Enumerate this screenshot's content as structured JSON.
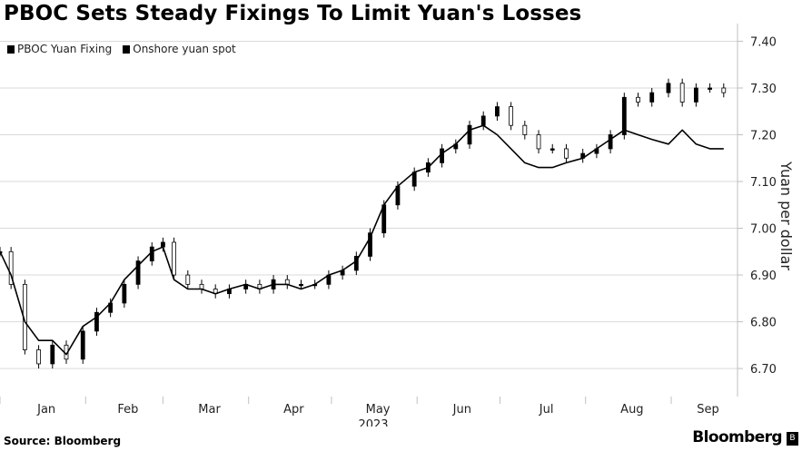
{
  "title": "PBOC Sets Steady Fixings To Limit Yuan's Losses",
  "source": "Source: Bloomberg",
  "brand": "Bloomberg",
  "legend": [
    {
      "name": "PBOC Yuan Fixing"
    },
    {
      "name": "Onshore yuan spot"
    }
  ],
  "colors": {
    "series": "#000000",
    "grid": "#d9d9d9",
    "axis": "#bfbfbf"
  },
  "chart_data": {
    "type": "line",
    "title": "PBOC Sets Steady Fixings To Limit Yuan's Losses",
    "ylabel": "Yuan per dollar",
    "xlabel": "",
    "year_label": "2023",
    "ylim": [
      6.64,
      7.43
    ],
    "y_ticks": [
      "6.70",
      "6.80",
      "6.90",
      "7.00",
      "7.10",
      "7.20",
      "7.30",
      "7.40"
    ],
    "x_ticks": [
      "Jan",
      "Feb",
      "Mar",
      "Apr",
      "May",
      "Jun",
      "Jul",
      "Aug",
      "Sep"
    ],
    "grid": "horizontal",
    "legend_position": "top-left",
    "series": [
      {
        "name": "PBOC Yuan Fixing",
        "style": "candlestick",
        "x": [
          "2023-01-01",
          "2023-01-05",
          "2023-01-10",
          "2023-01-15",
          "2023-01-20",
          "2023-01-25",
          "2023-01-31",
          "2023-02-05",
          "2023-02-10",
          "2023-02-15",
          "2023-02-20",
          "2023-02-25",
          "2023-03-01",
          "2023-03-05",
          "2023-03-10",
          "2023-03-15",
          "2023-03-20",
          "2023-03-25",
          "2023-03-31",
          "2023-04-05",
          "2023-04-10",
          "2023-04-15",
          "2023-04-20",
          "2023-04-25",
          "2023-04-30",
          "2023-05-05",
          "2023-05-10",
          "2023-05-15",
          "2023-05-20",
          "2023-05-25",
          "2023-05-31",
          "2023-06-05",
          "2023-06-10",
          "2023-06-15",
          "2023-06-20",
          "2023-06-25",
          "2023-06-30",
          "2023-07-05",
          "2023-07-10",
          "2023-07-15",
          "2023-07-20",
          "2023-07-25",
          "2023-07-31",
          "2023-08-05",
          "2023-08-10",
          "2023-08-15",
          "2023-08-20",
          "2023-08-25",
          "2023-08-31",
          "2023-09-05",
          "2023-09-10",
          "2023-09-15",
          "2023-09-20"
        ],
        "values": [
          6.95,
          6.88,
          6.74,
          6.71,
          6.75,
          6.72,
          6.78,
          6.82,
          6.84,
          6.88,
          6.93,
          6.96,
          6.97,
          6.9,
          6.88,
          6.87,
          6.86,
          6.87,
          6.88,
          6.87,
          6.89,
          6.88,
          6.88,
          6.88,
          6.9,
          6.91,
          6.94,
          6.99,
          7.05,
          7.09,
          7.12,
          7.14,
          7.17,
          7.18,
          7.22,
          7.24,
          7.26,
          7.22,
          7.2,
          7.17,
          7.17,
          7.15,
          7.16,
          7.17,
          7.2,
          7.28,
          7.27,
          7.29,
          7.31,
          7.27,
          7.3,
          7.3,
          7.29
        ]
      },
      {
        "name": "Onshore yuan spot",
        "style": "line",
        "x": [
          "2023-01-01",
          "2023-01-05",
          "2023-01-10",
          "2023-01-15",
          "2023-01-20",
          "2023-01-25",
          "2023-01-31",
          "2023-02-05",
          "2023-02-10",
          "2023-02-15",
          "2023-02-20",
          "2023-02-25",
          "2023-03-01",
          "2023-03-05",
          "2023-03-10",
          "2023-03-15",
          "2023-03-20",
          "2023-03-25",
          "2023-03-31",
          "2023-04-05",
          "2023-04-10",
          "2023-04-15",
          "2023-04-20",
          "2023-04-25",
          "2023-04-30",
          "2023-05-05",
          "2023-05-10",
          "2023-05-15",
          "2023-05-20",
          "2023-05-25",
          "2023-05-31",
          "2023-06-05",
          "2023-06-10",
          "2023-06-15",
          "2023-06-20",
          "2023-06-25",
          "2023-06-30",
          "2023-07-05",
          "2023-07-10",
          "2023-07-15",
          "2023-07-20",
          "2023-07-25",
          "2023-07-31",
          "2023-08-05",
          "2023-08-10",
          "2023-08-15",
          "2023-08-20",
          "2023-08-25",
          "2023-08-31",
          "2023-09-05",
          "2023-09-10",
          "2023-09-15",
          "2023-09-20"
        ],
        "values": [
          6.95,
          6.9,
          6.8,
          6.76,
          6.76,
          6.73,
          6.79,
          6.81,
          6.84,
          6.89,
          6.92,
          6.95,
          6.96,
          6.89,
          6.87,
          6.87,
          6.86,
          6.87,
          6.88,
          6.87,
          6.88,
          6.88,
          6.87,
          6.88,
          6.9,
          6.91,
          6.93,
          6.98,
          7.05,
          7.09,
          7.12,
          7.13,
          7.16,
          7.18,
          7.21,
          7.22,
          7.2,
          7.17,
          7.14,
          7.13,
          7.13,
          7.14,
          7.15,
          7.17,
          7.19,
          7.21,
          7.2,
          7.19,
          7.18,
          7.21,
          7.18,
          7.17,
          7.17
        ]
      }
    ]
  }
}
